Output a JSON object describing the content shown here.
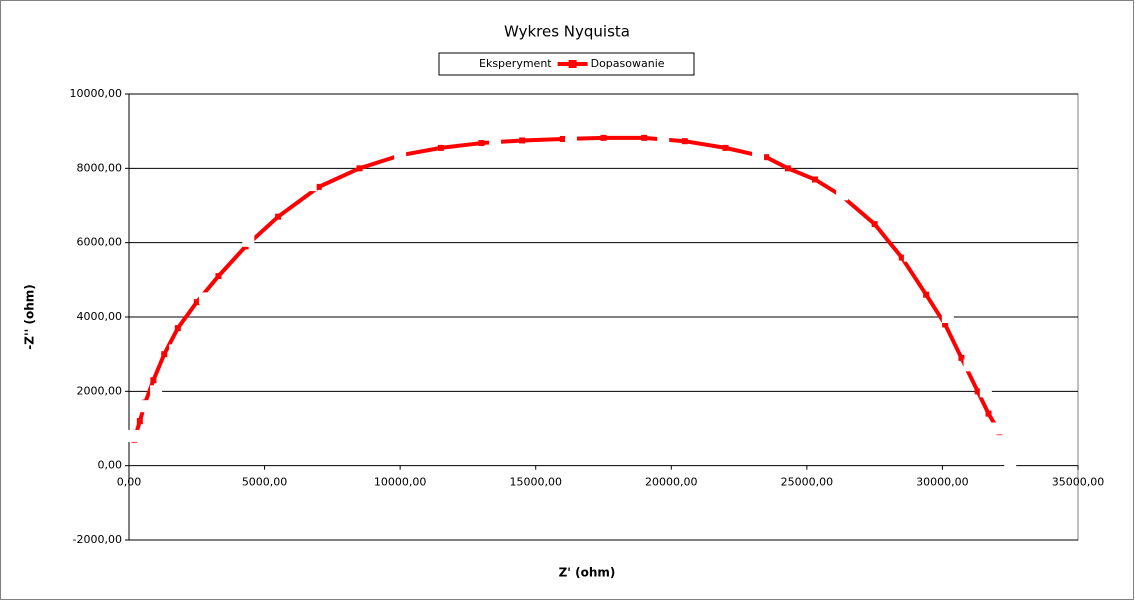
{
  "chart_data": {
    "type": "scatter",
    "title": "Wykres Nyquista",
    "x_label": "Z' (ohm)",
    "y_label": "-Z'' (ohm)",
    "xlim": [
      0,
      35000
    ],
    "ylim": [
      -2000,
      10000
    ],
    "xticks": [
      {
        "value": 0,
        "label": "0,00"
      },
      {
        "value": 5000,
        "label": "5000,00"
      },
      {
        "value": 10000,
        "label": "10000,00"
      },
      {
        "value": 15000,
        "label": "15000,00"
      },
      {
        "value": 20000,
        "label": "20000,00"
      },
      {
        "value": 25000,
        "label": "25000,00"
      },
      {
        "value": 30000,
        "label": "30000,00"
      },
      {
        "value": 35000,
        "label": "35000,00"
      }
    ],
    "yticks": [
      {
        "value": -2000,
        "label": "-2000,00"
      },
      {
        "value": 0,
        "label": "0,00"
      },
      {
        "value": 2000,
        "label": "2000,00"
      },
      {
        "value": 4000,
        "label": "4000,00"
      },
      {
        "value": 6000,
        "label": "6000,00"
      },
      {
        "value": 8000,
        "label": "8000,00"
      },
      {
        "value": 10000,
        "label": "10000,00"
      }
    ],
    "grid": true,
    "legend": "top",
    "series": [
      {
        "name": "Eksperyment",
        "color": "#ffffff",
        "line": false,
        "x": [
          150,
          550,
          1000,
          1700,
          2800,
          4400,
          6700,
          10000,
          13500,
          16300,
          19700,
          23200,
          26300,
          28800,
          30200,
          31000,
          31600,
          32000,
          32500
        ],
        "y": [
          800,
          1600,
          2000,
          3100,
          4500,
          6050,
          7550,
          8350,
          8600,
          8700,
          8820,
          8350,
          7300,
          5650,
          4000,
          2700,
          2000,
          1000,
          0
        ]
      },
      {
        "name": "Dopasowanie",
        "color": "#ff0000",
        "line": true,
        "x": [
          200,
          400,
          600,
          900,
          1300,
          1800,
          2500,
          3300,
          4300,
          5500,
          7000,
          8500,
          10000,
          11500,
          13000,
          14500,
          16000,
          17500,
          19000,
          20500,
          22000,
          23500,
          24300,
          25300,
          26300,
          27500,
          28500,
          29400,
          30100,
          30700,
          31300,
          31700,
          32100
        ],
        "y": [
          700,
          1200,
          1700,
          2300,
          3000,
          3700,
          4400,
          5100,
          5900,
          6700,
          7500,
          8000,
          8350,
          8550,
          8680,
          8750,
          8790,
          8820,
          8820,
          8730,
          8550,
          8300,
          8000,
          7700,
          7250,
          6500,
          5600,
          4600,
          3800,
          2900,
          2000,
          1400,
          900
        ]
      }
    ]
  }
}
